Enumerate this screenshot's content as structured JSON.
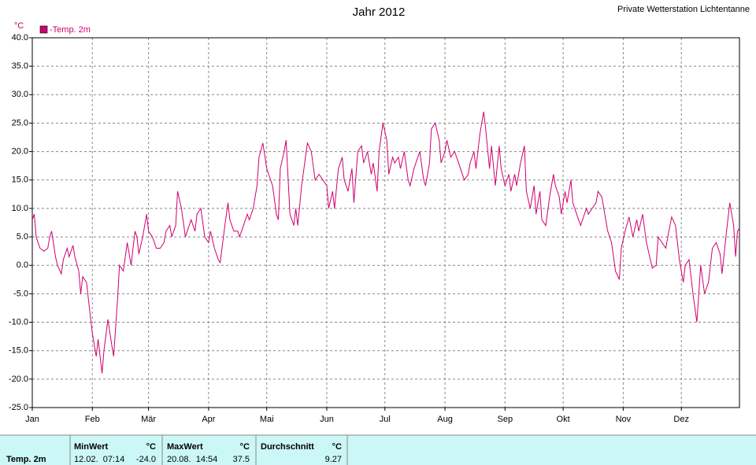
{
  "chart_data": {
    "type": "line",
    "title": "Jahr 2012",
    "subtitle": "Private Wetterstation Lichtentanne",
    "y_unit": "°C",
    "x": [
      1,
      2,
      3,
      5,
      7,
      9,
      10,
      11,
      13,
      14,
      16,
      17,
      19,
      20,
      22,
      23,
      25,
      26,
      27,
      29,
      30,
      32,
      34,
      35,
      37,
      38,
      40,
      42,
      43,
      45,
      46,
      48,
      50,
      52,
      54,
      55,
      56,
      58,
      60,
      61,
      63,
      65,
      67,
      69,
      70,
      72,
      73,
      75,
      76,
      78,
      80,
      81,
      83,
      85,
      86,
      88,
      90,
      92,
      93,
      95,
      97,
      98,
      100,
      102,
      103,
      105,
      107,
      108,
      110,
      112,
      113,
      115,
      117,
      118,
      120,
      122,
      123,
      125,
      127,
      128,
      129,
      131,
      132,
      134,
      136,
      137,
      138,
      140,
      142,
      143,
      145,
      147,
      149,
      151,
      153,
      154,
      156,
      157,
      159,
      161,
      162,
      164,
      166,
      167,
      169,
      171,
      172,
      174,
      176,
      177,
      179,
      180,
      182,
      184,
      185,
      187,
      188,
      190,
      191,
      193,
      195,
      196,
      198,
      199,
      201,
      203,
      204,
      206,
      207,
      209,
      211,
      212,
      214,
      215,
      217,
      219,
      221,
      222,
      224,
      226,
      227,
      229,
      230,
      232,
      234,
      235,
      237,
      238,
      240,
      242,
      243,
      245,
      247,
      248,
      250,
      251,
      253,
      255,
      256,
      258,
      260,
      261,
      263,
      264,
      266,
      268,
      270,
      271,
      273,
      274,
      276,
      277,
      279,
      280,
      282,
      284,
      285,
      287,
      288,
      290,
      292,
      293,
      295,
      297,
      298,
      300,
      302,
      304,
      305,
      307,
      309,
      311,
      313,
      314,
      316,
      318,
      321,
      323,
      324,
      326,
      328,
      329,
      331,
      333,
      335,
      337,
      338,
      340,
      342,
      344,
      346,
      348,
      350,
      352,
      354,
      356,
      357,
      359,
      361,
      363,
      364,
      365,
      366
    ],
    "series": [
      {
        "name": "-Temp. 2m",
        "color": "#d0006f",
        "values": [
          8,
          9,
          5,
          3,
          2.5,
          3,
          5,
          6,
          1.5,
          0,
          -1.5,
          1,
          3,
          1.5,
          3.5,
          1.5,
          -1,
          -5,
          -2,
          -3,
          -6,
          -12,
          -16,
          -13,
          -19,
          -15,
          -9.5,
          -14,
          -16,
          -6,
          0,
          -1,
          4,
          0,
          6,
          5,
          2,
          5,
          9,
          6,
          5,
          3,
          3,
          4,
          6,
          7,
          5,
          7,
          13,
          10,
          5,
          6,
          8,
          6,
          9,
          10,
          5,
          4,
          6,
          3,
          1,
          0.5,
          6,
          11,
          8,
          6,
          6,
          5,
          7,
          9,
          8,
          10,
          14,
          19,
          21.5,
          17,
          16,
          14,
          9,
          8,
          17,
          20,
          22,
          9,
          7,
          10,
          7,
          14,
          19,
          21.5,
          20,
          15,
          16,
          15,
          14,
          10,
          13,
          10,
          17,
          19,
          15,
          13,
          17,
          11,
          20,
          21,
          18,
          20,
          16,
          18,
          13,
          20,
          25,
          22,
          16,
          19,
          18,
          19,
          17,
          20,
          15,
          14,
          17,
          18,
          20,
          15,
          14,
          18,
          24,
          25,
          22,
          18,
          20,
          22,
          19,
          20,
          18,
          17,
          15,
          16,
          18,
          20,
          17,
          23,
          27,
          24,
          17,
          21,
          14,
          21,
          17,
          14,
          16,
          13,
          16,
          14,
          18,
          21,
          13,
          10,
          14,
          9,
          13,
          8,
          7,
          12,
          16,
          14,
          12,
          9,
          13,
          11,
          15,
          11,
          9,
          7,
          8,
          10,
          9,
          10,
          11,
          13,
          12,
          8,
          6,
          4,
          -1,
          -2.5,
          3,
          6,
          8.5,
          5,
          8,
          6,
          9,
          4,
          -0.5,
          0,
          5,
          4,
          3,
          5,
          8.5,
          7,
          1,
          -3,
          0,
          1,
          -5,
          -10,
          0,
          -5,
          -3,
          3,
          4,
          2,
          -1.5,
          5,
          11,
          7,
          1.5,
          6,
          6.5
        ]
      }
    ],
    "xlim": [
      1,
      366
    ],
    "xticks": [
      {
        "value": 1,
        "label": "Jan"
      },
      {
        "value": 32,
        "label": "Feb"
      },
      {
        "value": 61,
        "label": "Mär"
      },
      {
        "value": 92,
        "label": "Apr"
      },
      {
        "value": 122,
        "label": "Mai"
      },
      {
        "value": 153,
        "label": "Jun"
      },
      {
        "value": 183,
        "label": "Jul"
      },
      {
        "value": 214,
        "label": "Aug"
      },
      {
        "value": 245,
        "label": "Sep"
      },
      {
        "value": 275,
        "label": "Okt"
      },
      {
        "value": 306,
        "label": "Nov"
      },
      {
        "value": 336,
        "label": "Dez"
      }
    ],
    "ylim": [
      -25,
      40
    ],
    "yticks": [
      {
        "value": -25,
        "label": "-25.0"
      },
      {
        "value": -20,
        "label": "-20.0"
      },
      {
        "value": -15,
        "label": "-15.0"
      },
      {
        "value": -10,
        "label": "-10.0"
      },
      {
        "value": -5,
        "label": "-5.0"
      },
      {
        "value": 0,
        "label": "0.0"
      },
      {
        "value": 5,
        "label": "5.0"
      },
      {
        "value": 10,
        "label": "10.0"
      },
      {
        "value": 15,
        "label": "15.0"
      },
      {
        "value": 20,
        "label": "20.0"
      },
      {
        "value": 25,
        "label": "25.0"
      },
      {
        "value": 30,
        "label": "30.0"
      },
      {
        "value": 35,
        "label": "35.0"
      },
      {
        "value": 40,
        "label": "40.0"
      }
    ],
    "grid": true
  },
  "summary": {
    "row_label": "Temp. 2m",
    "min": {
      "header": "MinWert",
      "unit": "°C",
      "time": "12.02.  07:14",
      "value": "-24.0"
    },
    "max": {
      "header": "MaxWert",
      "unit": "°C",
      "time": "20.08.  14:54",
      "value": "37.5"
    },
    "avg": {
      "header": "Durchschnitt",
      "unit": "°C",
      "value": "9.27"
    }
  }
}
